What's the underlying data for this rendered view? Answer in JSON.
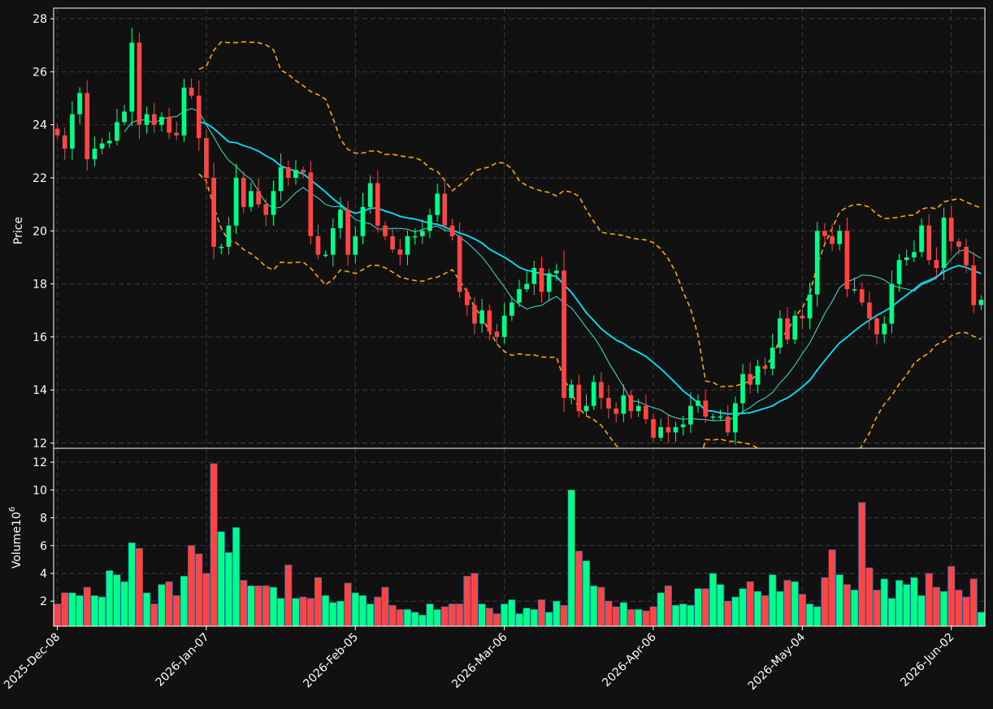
{
  "chart_data": {
    "type": "candlestick",
    "style": {
      "background": "#111111",
      "up_color": "#00ff88",
      "down_color": "#ff4444",
      "volume_edge_color": "#1f6fb2",
      "ma_fast_color": "#40e0d0",
      "ma_slow_color": "#00e5ff",
      "bollinger_color": "#ffa500",
      "grid": true,
      "grid_style": "dashed"
    },
    "price_panel": {
      "ylabel": "Price",
      "ylim": [
        11.8,
        28.4
      ],
      "yticks": [
        12,
        14,
        16,
        18,
        20,
        22,
        24,
        26,
        28
      ]
    },
    "volume_panel": {
      "ylabel": "Volume",
      "ylabel_exponent": "10",
      "ylabel_exponent_power": "6",
      "ylim": [
        0.2,
        13.0
      ],
      "yticks": [
        2,
        4,
        6,
        8,
        10,
        12
      ]
    },
    "xaxis": {
      "n_bars": 125,
      "tick_labels": [
        "2025-Dec-08",
        "2026-Jan-07",
        "2026-Feb-05",
        "2026-Mar-06",
        "2026-Apr-06",
        "2026-May-04",
        "2026-Jun-02"
      ],
      "tick_bar_index": [
        0,
        20,
        40,
        60,
        80,
        100,
        120
      ]
    },
    "close": [
      23.6,
      23.1,
      24.4,
      25.2,
      22.7,
      23.1,
      23.3,
      23.4,
      24.1,
      24.5,
      27.1,
      24.0,
      24.4,
      24.0,
      24.3,
      23.7,
      23.6,
      25.4,
      25.1,
      23.5,
      22.0,
      19.4,
      19.4,
      20.2,
      22.0,
      20.9,
      21.5,
      21.0,
      20.6,
      21.5,
      22.4,
      22.0,
      22.3,
      22.2,
      19.8,
      19.1,
      19.1,
      20.1,
      20.8,
      19.1,
      19.8,
      20.9,
      21.8,
      20.2,
      19.8,
      19.3,
      19.1,
      19.8,
      19.8,
      20.0,
      20.6,
      21.4,
      20.2,
      19.8,
      17.7,
      17.2,
      16.5,
      17.0,
      16.2,
      16.0,
      16.8,
      17.3,
      17.8,
      18.0,
      18.6,
      17.7,
      18.4,
      18.5,
      13.7,
      14.2,
      13.2,
      13.4,
      14.3,
      13.7,
      13.3,
      13.1,
      13.8,
      13.2,
      13.4,
      12.9,
      12.2,
      12.6,
      12.4,
      12.6,
      12.7,
      13.4,
      13.6,
      13.0,
      13.0,
      13.0,
      12.4,
      13.5,
      14.6,
      14.2,
      14.9,
      14.8,
      15.6,
      16.7,
      15.9,
      16.8,
      16.7,
      17.6,
      20.0,
      19.8,
      19.5,
      20.0,
      17.8,
      17.8,
      17.3,
      16.7,
      16.1,
      16.5,
      18.0,
      18.9,
      19.0,
      19.2,
      20.2,
      18.9,
      18.6,
      20.5,
      19.6,
      19.4,
      18.7,
      17.2,
      17.4
    ],
    "volume": [
      1.8,
      2.6,
      2.6,
      2.4,
      3.0,
      2.4,
      2.3,
      4.2,
      3.9,
      3.4,
      6.2,
      5.8,
      2.6,
      1.8,
      3.2,
      3.4,
      2.4,
      3.8,
      6.0,
      5.4,
      4.0,
      11.9,
      7.0,
      5.5,
      7.3,
      3.5,
      3.1,
      3.1,
      3.1,
      3.0,
      2.2,
      4.6,
      2.2,
      2.3,
      2.2,
      3.7,
      2.4,
      1.9,
      2.0,
      3.3,
      2.6,
      2.4,
      1.8,
      2.3,
      3.0,
      1.7,
      1.4,
      1.4,
      1.2,
      1.0,
      1.8,
      1.4,
      1.6,
      1.8,
      1.8,
      3.8,
      4.0,
      1.8,
      1.5,
      1.1,
      1.8,
      2.1,
      1.1,
      1.5,
      1.4,
      2.1,
      1.2,
      2.0,
      1.7,
      10.0,
      5.6,
      4.9,
      3.1,
      3.0,
      2.0,
      1.6,
      1.9,
      1.4,
      1.4,
      1.3,
      1.6,
      2.6,
      3.1,
      1.7,
      1.8,
      1.7,
      2.9,
      2.9,
      4.0,
      3.2,
      2.0,
      2.3,
      2.9,
      3.4,
      2.7,
      2.4,
      3.9,
      2.7,
      3.5,
      3.4,
      2.5,
      1.8,
      1.6,
      3.7,
      5.7,
      3.9,
      3.2,
      2.8,
      9.1,
      4.4,
      2.8,
      3.6,
      2.2,
      3.5,
      3.2,
      3.7,
      2.4,
      4.0,
      3.0,
      2.7,
      4.5,
      2.8,
      2.3,
      3.6,
      1.2
    ],
    "overlays": [
      "moving average (fast)",
      "moving average (slow)",
      "bollinger bands (upper, lower)"
    ]
  }
}
